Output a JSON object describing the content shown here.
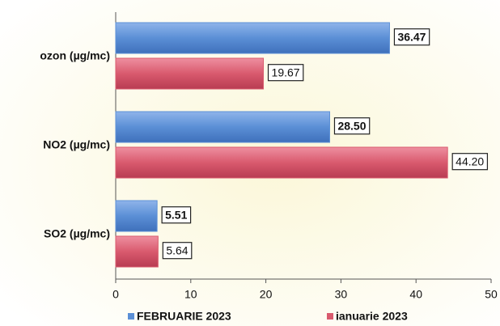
{
  "chart_data": {
    "type": "hbar",
    "categories": [
      "ozon (µg/mc)",
      "NO2 (µg/mc)",
      "SO2 (µg/mc)"
    ],
    "series": [
      {
        "name": "FEBRUARIE 2023",
        "color": "#5b8fd6",
        "values": [
          36.47,
          28.5,
          5.51
        ],
        "value_labels": [
          "36.47",
          "28.50",
          "5.51"
        ]
      },
      {
        "name": "ianuarie 2023",
        "color": "#d95a6e",
        "values": [
          19.67,
          44.2,
          5.64
        ],
        "value_labels": [
          "19.67",
          "44.20",
          "5.64"
        ]
      }
    ],
    "xlim": [
      0,
      50
    ],
    "xticks": [
      0,
      10,
      20,
      30,
      40,
      50
    ]
  }
}
